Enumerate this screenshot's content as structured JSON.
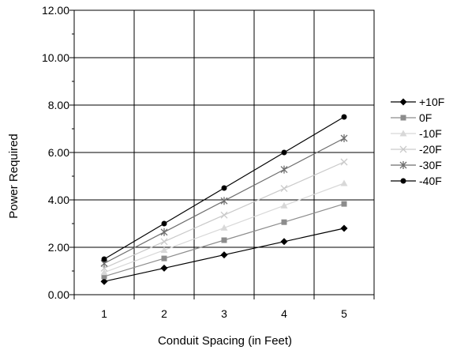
{
  "chart_data": {
    "type": "line",
    "title": "",
    "xlabel": "Conduit Spacing (in Feet)",
    "ylabel": "Power Required",
    "x": [
      1,
      2,
      3,
      4,
      5
    ],
    "xlim": [
      0.5,
      5.5
    ],
    "ylim": [
      0,
      12
    ],
    "y_ticks": [
      "0.00",
      "2.00",
      "4.00",
      "6.00",
      "8.00",
      "10.00",
      "12.00"
    ],
    "x_ticks": [
      "1",
      "2",
      "3",
      "4",
      "5"
    ],
    "grid": true,
    "legend_position": "right",
    "series": [
      {
        "name": "+10F",
        "values": [
          0.56,
          1.12,
          1.68,
          2.24,
          2.8
        ],
        "color": "#000000",
        "marker": "diamond"
      },
      {
        "name": "0F",
        "values": [
          0.77,
          1.53,
          2.3,
          3.06,
          3.83
        ],
        "color": "#8c8c8c",
        "marker": "square"
      },
      {
        "name": "-10F",
        "values": [
          0.94,
          1.88,
          2.82,
          3.76,
          4.7
        ],
        "color": "#d8d8d8",
        "marker": "triangle"
      },
      {
        "name": "-20F",
        "values": [
          1.12,
          2.24,
          3.36,
          4.48,
          5.6
        ],
        "color": "#c9c9c9",
        "marker": "x"
      },
      {
        "name": "-30F",
        "values": [
          1.32,
          2.64,
          3.96,
          5.28,
          6.6
        ],
        "color": "#6e6e6e",
        "marker": "star"
      },
      {
        "name": "-40F",
        "values": [
          1.5,
          3.0,
          4.5,
          6.0,
          7.5
        ],
        "color": "#000000",
        "marker": "circle"
      }
    ]
  }
}
